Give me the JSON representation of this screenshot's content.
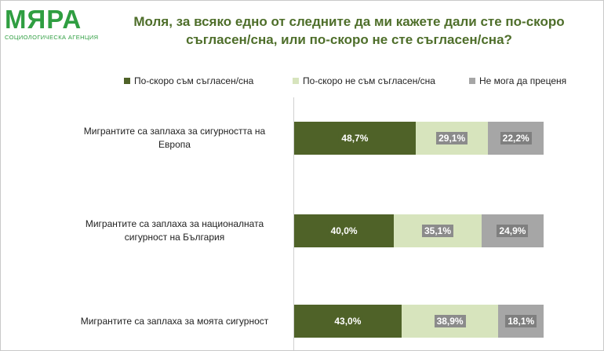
{
  "logo": {
    "name": "МЯРА",
    "tagline": "СОЦИОЛОГИЧЕСКА АГЕНЦИЯ"
  },
  "chart_data": {
    "type": "bar",
    "orientation": "horizontal",
    "stacked": true,
    "title": "Моля, за всяко едно от следните да ми кажете дали сте по-скоро съгласен/сна, или по-скоро не сте съгласен/сна?",
    "title_lines": [
      "Моля, за всяко едно от следните да ми кажете дали сте по-скоро",
      "съгласен/сна, или по-скоро не сте съгласен/сна?"
    ],
    "categories": [
      "Мигрантите са заплаха за сигурността на Европа",
      "Мигрантите са заплаха за националната сигурност на България",
      "Мигрантите са заплаха за моята сигурност"
    ],
    "category_lines": [
      [
        "Мигрантите са заплаха за сигурността на",
        "Европа"
      ],
      [
        "Мигрантите са заплаха за националната",
        "сигурност на България"
      ],
      [
        "Мигрантите са заплаха за моята сигурност"
      ]
    ],
    "series": [
      {
        "name": "По-скоро съм съгласен/сна",
        "color": "#4f6228",
        "values": [
          48.7,
          40.0,
          43.0
        ],
        "labels": [
          "48,7%",
          "40,0%",
          "43,0%"
        ],
        "label_bg": "#4f6228"
      },
      {
        "name": "По-скоро не съм съгласен/сна",
        "color": "#d7e4bd",
        "values": [
          29.1,
          35.1,
          38.9
        ],
        "labels": [
          "29,1%",
          "35,1%",
          "38,9%"
        ],
        "label_bg": "#8b8b8b"
      },
      {
        "name": "Не мога да преценя",
        "color": "#a6a6a6",
        "values": [
          22.2,
          24.9,
          18.1
        ],
        "labels": [
          "22,2%",
          "24,9%",
          "18,1%"
        ],
        "label_bg": "#7f7f7f"
      }
    ],
    "xlim": [
      0,
      100
    ],
    "legend_position": "top",
    "grid": false
  }
}
